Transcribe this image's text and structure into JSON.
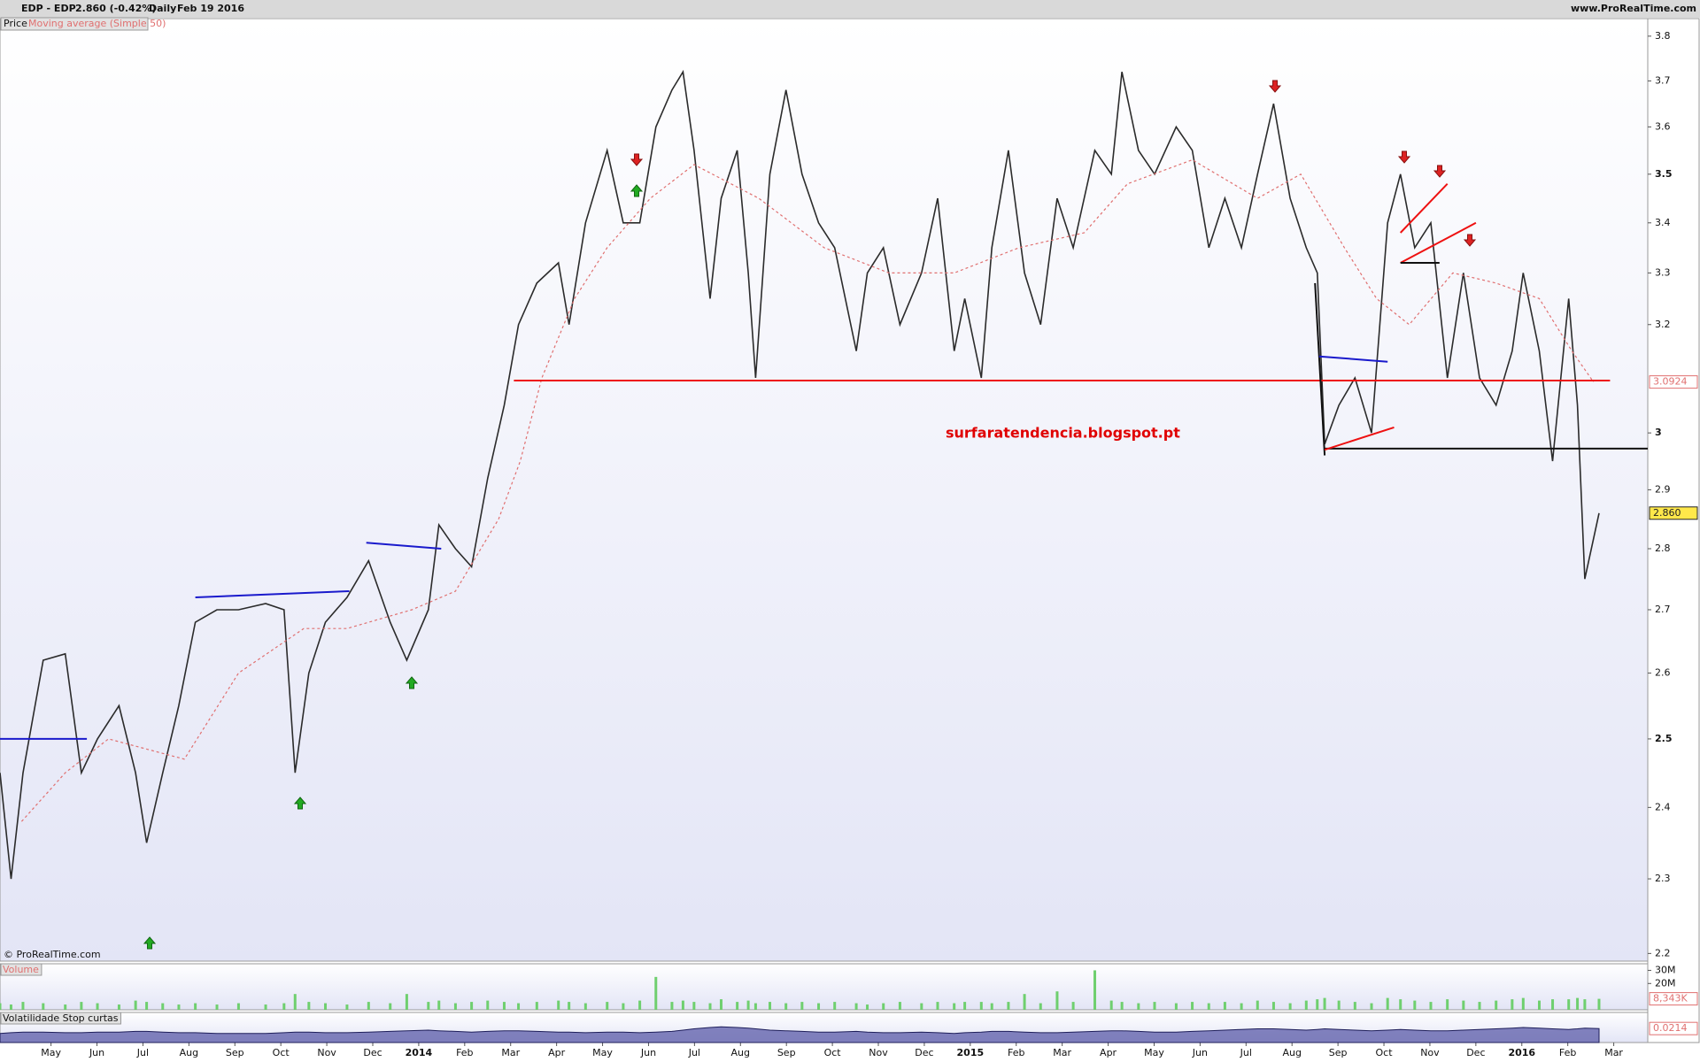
{
  "header": {
    "symbol": "EDP - EDP",
    "quote": "2.860 (-0.42%)",
    "period": "Daily",
    "date": "Feb 19 2016",
    "site": "www.ProRealTime.com"
  },
  "copyright": "© ProRealTime.com",
  "chart_data": [
    {
      "type": "line",
      "log_scale": true,
      "grid": false,
      "annotation": "surfaratendencia.blogspot.pt",
      "xlim": [
        -1.11,
        34.74
      ],
      "ylim": [
        2.19,
        3.84
      ],
      "xticks": [
        {
          "value": 0,
          "label": "May"
        },
        {
          "value": 1,
          "label": "Jun"
        },
        {
          "value": 2,
          "label": "Jul"
        },
        {
          "value": 3,
          "label": "Aug"
        },
        {
          "value": 4,
          "label": "Sep"
        },
        {
          "value": 5,
          "label": "Oct"
        },
        {
          "value": 6,
          "label": "Nov"
        },
        {
          "value": 7,
          "label": "Dec"
        },
        {
          "value": 8,
          "label": "2014"
        },
        {
          "value": 9,
          "label": "Feb"
        },
        {
          "value": 10,
          "label": "Mar"
        },
        {
          "value": 11,
          "label": "Apr"
        },
        {
          "value": 12,
          "label": "May"
        },
        {
          "value": 13,
          "label": "Jun"
        },
        {
          "value": 14,
          "label": "Jul"
        },
        {
          "value": 15,
          "label": "Aug"
        },
        {
          "value": 16,
          "label": "Sep"
        },
        {
          "value": 17,
          "label": "Oct"
        },
        {
          "value": 18,
          "label": "Nov"
        },
        {
          "value": 19,
          "label": "Dec"
        },
        {
          "value": 20,
          "label": "2015"
        },
        {
          "value": 21,
          "label": "Feb"
        },
        {
          "value": 22,
          "label": "Mar"
        },
        {
          "value": 23,
          "label": "Apr"
        },
        {
          "value": 24,
          "label": "May"
        },
        {
          "value": 25,
          "label": "Jun"
        },
        {
          "value": 26,
          "label": "Jul"
        },
        {
          "value": 27,
          "label": "Aug"
        },
        {
          "value": 28,
          "label": "Sep"
        },
        {
          "value": 29,
          "label": "Oct"
        },
        {
          "value": 30,
          "label": "Nov"
        },
        {
          "value": 31,
          "label": "Dec"
        },
        {
          "value": 32,
          "label": "2016"
        },
        {
          "value": 33,
          "label": "Feb"
        },
        {
          "value": 34,
          "label": "Mar"
        }
      ],
      "yticks": [
        2.2,
        2.3,
        2.4,
        2.5,
        2.6,
        2.7,
        2.8,
        2.9,
        3,
        3.2,
        3.3,
        3.4,
        3.5,
        3.6,
        3.7,
        3.8
      ],
      "series": [
        {
          "name": "Price",
          "color": "#2b2b2b",
          "x": [
            -1.11,
            -0.87,
            -0.61,
            -0.17,
            0.31,
            0.66,
            1.01,
            1.48,
            1.84,
            2.08,
            2.43,
            2.78,
            3.14,
            3.61,
            4.08,
            4.67,
            5.07,
            5.31,
            5.61,
            5.97,
            6.44,
            6.91,
            7.38,
            7.74,
            8.21,
            8.44,
            8.8,
            9.15,
            9.5,
            9.86,
            10.17,
            10.57,
            11.04,
            11.27,
            11.63,
            12.1,
            12.45,
            12.81,
            13.16,
            13.51,
            13.75,
            13.99,
            14.34,
            14.58,
            14.93,
            15.17,
            15.33,
            15.64,
            15.99,
            16.34,
            16.7,
            17.05,
            17.52,
            17.76,
            18.11,
            18.47,
            18.94,
            19.29,
            19.65,
            19.88,
            20.24,
            20.47,
            20.83,
            21.18,
            21.53,
            21.89,
            22.24,
            22.71,
            23.07,
            23.3,
            23.66,
            24.01,
            24.48,
            24.83,
            25.19,
            25.54,
            25.9,
            26.25,
            26.6,
            26.96,
            27.31,
            27.55,
            27.71,
            28.02,
            28.37,
            28.73,
            29.08,
            29.36,
            29.67,
            30.02,
            30.38,
            30.73,
            31.08,
            31.44,
            31.79,
            32.03,
            32.38,
            32.67,
            33.02,
            33.21,
            33.37,
            33.68
          ],
          "values": [
            2.45,
            2.3,
            2.45,
            2.62,
            2.63,
            2.45,
            2.5,
            2.55,
            2.45,
            2.35,
            2.45,
            2.55,
            2.68,
            2.7,
            2.7,
            2.71,
            2.7,
            2.45,
            2.6,
            2.68,
            2.72,
            2.78,
            2.68,
            2.62,
            2.7,
            2.84,
            2.8,
            2.77,
            2.92,
            3.05,
            3.2,
            3.28,
            3.32,
            3.2,
            3.4,
            3.55,
            3.4,
            3.4,
            3.6,
            3.68,
            3.72,
            3.55,
            3.25,
            3.45,
            3.55,
            3.3,
            3.1,
            3.5,
            3.68,
            3.5,
            3.4,
            3.35,
            3.15,
            3.3,
            3.35,
            3.2,
            3.3,
            3.45,
            3.15,
            3.25,
            3.1,
            3.35,
            3.55,
            3.3,
            3.2,
            3.45,
            3.35,
            3.55,
            3.5,
            3.72,
            3.55,
            3.5,
            3.6,
            3.55,
            3.35,
            3.45,
            3.35,
            3.5,
            3.65,
            3.45,
            3.35,
            3.3,
            2.98,
            3.05,
            3.1,
            3.0,
            3.4,
            3.5,
            3.35,
            3.4,
            3.1,
            3.3,
            3.1,
            3.05,
            3.15,
            3.3,
            3.15,
            2.95,
            3.25,
            3.05,
            2.75,
            2.86
          ]
        },
        {
          "name": "Moving average (Simple 50)",
          "color": "#e07070",
          "dashed": true,
          "x": [
            -0.64,
            0.31,
            1.25,
            2.9,
            4.08,
            5.5,
            6.44,
            7.85,
            8.8,
            9.74,
            10.21,
            10.68,
            11.39,
            12.1,
            13.04,
            13.99,
            15.4,
            16.82,
            18.23,
            19.65,
            21.06,
            22.48,
            23.42,
            24.83,
            26.25,
            27.19,
            28.14,
            28.84,
            29.55,
            30.5,
            31.44,
            32.38,
            33.09,
            33.56
          ],
          "values": [
            2.38,
            2.45,
            2.5,
            2.47,
            2.6,
            2.67,
            2.67,
            2.7,
            2.73,
            2.85,
            2.95,
            3.1,
            3.25,
            3.35,
            3.45,
            3.52,
            3.45,
            3.35,
            3.3,
            3.3,
            3.35,
            3.38,
            3.48,
            3.53,
            3.45,
            3.5,
            3.35,
            3.25,
            3.2,
            3.3,
            3.28,
            3.25,
            3.15,
            3.0924
          ]
        }
      ],
      "trendlines": [
        {
          "color": "#1a1acc",
          "x": [
            -1.11,
            0.78
          ],
          "y": [
            2.5,
            2.5
          ]
        },
        {
          "color": "#1a1acc",
          "x": [
            3.14,
            6.49
          ],
          "y": [
            2.72,
            2.73
          ]
        },
        {
          "color": "#1a1acc",
          "x": [
            6.86,
            8.49
          ],
          "y": [
            2.81,
            2.8
          ]
        },
        {
          "color": "#ee1111",
          "x": [
            10.07,
            33.92
          ],
          "y": [
            3.095,
            3.095
          ]
        },
        {
          "color": "#111111",
          "x": [
            27.71,
            34.74
          ],
          "y": [
            2.972,
            2.972
          ]
        },
        {
          "color": "#111111",
          "x": [
            27.5,
            27.71
          ],
          "y": [
            3.28,
            2.96
          ]
        },
        {
          "color": "#1a1acc",
          "x": [
            27.59,
            29.08
          ],
          "y": [
            3.14,
            3.13
          ]
        },
        {
          "color": "#ee1111",
          "x": [
            27.71,
            29.22
          ],
          "y": [
            2.97,
            3.01
          ]
        },
        {
          "color": "#ee1111",
          "x": [
            29.36,
            30.38
          ],
          "y": [
            3.38,
            3.48
          ]
        },
        {
          "color": "#ee1111",
          "x": [
            29.36,
            31.0
          ],
          "y": [
            3.32,
            3.4
          ]
        },
        {
          "color": "#111111",
          "x": [
            29.36,
            30.21
          ],
          "y": [
            3.32,
            3.32
          ]
        }
      ],
      "last_markers": [
        {
          "value": 3.0924,
          "label": "3.0924",
          "color": "#e07070",
          "fill": "#ffffff"
        },
        {
          "value": 2.86,
          "label": "2.860",
          "color": "#222222",
          "fill": "#ffe84a"
        }
      ]
    },
    {
      "type": "bar",
      "title": "Volume",
      "color": "#6fcf6f",
      "ylim": [
        0,
        35000000
      ],
      "yticks": [
        {
          "value": 20000000,
          "label": "20M"
        },
        {
          "value": 30000000,
          "label": "30M"
        }
      ],
      "values": [
        5000000,
        4000000,
        6000000,
        5000000,
        4000000,
        6000000,
        5000000,
        4000000,
        7000000,
        6000000,
        5000000,
        4000000,
        5000000,
        4000000,
        5000000,
        4000000,
        5000000,
        12000000,
        6000000,
        5000000,
        4000000,
        6000000,
        5000000,
        12000000,
        6000000,
        7000000,
        5000000,
        6000000,
        7000000,
        6000000,
        5000000,
        6000000,
        7000000,
        6000000,
        5000000,
        6000000,
        5000000,
        7000000,
        25000000,
        6000000,
        7000000,
        6000000,
        5000000,
        8000000,
        6000000,
        7000000,
        5000000,
        6000000,
        5000000,
        6000000,
        5000000,
        6000000,
        5000000,
        4000000,
        5000000,
        6000000,
        5000000,
        6000000,
        5000000,
        6000000,
        6000000,
        5000000,
        6000000,
        12000000,
        5000000,
        14000000,
        6000000,
        30000000,
        7000000,
        6000000,
        5000000,
        6000000,
        5000000,
        6000000,
        5000000,
        6000000,
        5000000,
        7000000,
        6000000,
        5000000,
        7000000,
        8000000,
        9000000,
        7000000,
        6000000,
        5000000,
        9000000,
        8000000,
        7000000,
        6000000,
        8000000,
        7000000,
        6000000,
        7000000,
        8000000,
        9000000,
        7000000,
        8000000,
        8000000,
        9000000,
        8000000,
        8343000
      ],
      "last_marker": {
        "value": 8343000,
        "label": "8,343K"
      }
    },
    {
      "type": "area",
      "title": "Volatilidade Stop curtas",
      "color": "#5b5ba8",
      "ylim": [
        0,
        0.046
      ],
      "values": [
        0.014,
        0.015,
        0.016,
        0.016,
        0.015,
        0.015,
        0.016,
        0.016,
        0.017,
        0.017,
        0.016,
        0.015,
        0.015,
        0.014,
        0.014,
        0.014,
        0.015,
        0.016,
        0.016,
        0.015,
        0.015,
        0.016,
        0.017,
        0.018,
        0.019,
        0.018,
        0.017,
        0.016,
        0.017,
        0.018,
        0.018,
        0.017,
        0.016,
        0.016,
        0.015,
        0.016,
        0.016,
        0.015,
        0.016,
        0.017,
        0.019,
        0.021,
        0.023,
        0.024,
        0.023,
        0.022,
        0.021,
        0.019,
        0.018,
        0.017,
        0.016,
        0.016,
        0.017,
        0.016,
        0.015,
        0.015,
        0.016,
        0.015,
        0.014,
        0.015,
        0.016,
        0.017,
        0.017,
        0.016,
        0.015,
        0.015,
        0.016,
        0.017,
        0.018,
        0.018,
        0.017,
        0.016,
        0.016,
        0.017,
        0.018,
        0.019,
        0.02,
        0.021,
        0.021,
        0.02,
        0.019,
        0.02,
        0.021,
        0.02,
        0.019,
        0.018,
        0.019,
        0.02,
        0.019,
        0.018,
        0.018,
        0.019,
        0.02,
        0.021,
        0.022,
        0.023,
        0.022,
        0.021,
        0.02,
        0.021,
        0.022,
        0.0214
      ],
      "last_marker": {
        "value": 0.0214,
        "label": "0.0214"
      }
    }
  ]
}
